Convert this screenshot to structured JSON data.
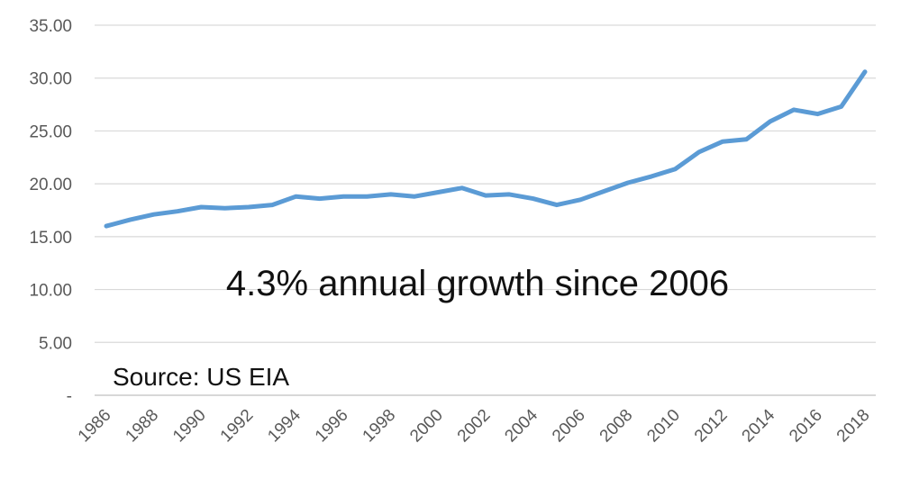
{
  "chart_data": {
    "type": "line",
    "x": [
      1986,
      1987,
      1988,
      1989,
      1990,
      1991,
      1992,
      1993,
      1994,
      1995,
      1996,
      1997,
      1998,
      1999,
      2000,
      2001,
      2002,
      2003,
      2004,
      2005,
      2006,
      2007,
      2008,
      2009,
      2010,
      2011,
      2012,
      2013,
      2014,
      2015,
      2016,
      2017,
      2018
    ],
    "x_tick_labels": [
      "1986",
      "1988",
      "1990",
      "1992",
      "1994",
      "1996",
      "1998",
      "2000",
      "2002",
      "2004",
      "2006",
      "2008",
      "2010",
      "2012",
      "2014",
      "2016",
      "2018"
    ],
    "series": [
      {
        "color": "#5b9bd5",
        "values": [
          16.0,
          16.6,
          17.1,
          17.4,
          17.8,
          17.7,
          17.8,
          18.0,
          18.8,
          18.6,
          18.8,
          18.8,
          19.0,
          18.8,
          19.2,
          19.6,
          18.9,
          19.0,
          18.6,
          18.0,
          18.5,
          19.3,
          20.1,
          20.7,
          21.4,
          23.0,
          24.0,
          24.2,
          25.9,
          27.0,
          26.6,
          27.3,
          30.6
        ]
      }
    ],
    "y_tick_labels": [
      "-",
      "5.00",
      "10.00",
      "15.00",
      "20.00",
      "25.00",
      "30.00",
      "35.00"
    ],
    "ylim": [
      0,
      35
    ],
    "xlim": [
      1986,
      2018
    ],
    "grid": true,
    "annotations": {
      "main": "4.3% annual growth since 2006",
      "source": "Source: US EIA"
    }
  }
}
